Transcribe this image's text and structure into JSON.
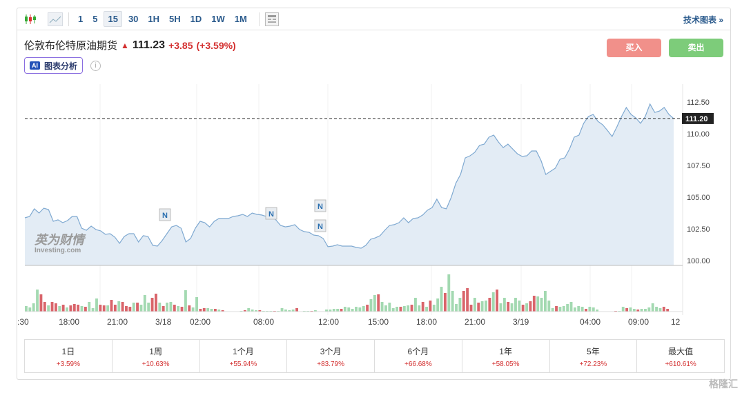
{
  "toolbar": {
    "intervals": [
      "1",
      "5",
      "15",
      "30",
      "1H",
      "5H",
      "1D",
      "1W",
      "1M"
    ],
    "active": "15",
    "tech_chart": "技术图表 »"
  },
  "instrument": {
    "name": "伦敦布伦特原油期货",
    "price": "111.23",
    "change": "+3.85",
    "change_pct": "(+3.59%)"
  },
  "ai": {
    "badge": "AI",
    "label": "图表分析",
    "info": "i"
  },
  "buttons": {
    "buy": "买入",
    "sell": "卖出"
  },
  "logo": {
    "cn": "英为财情",
    "en": "Investing.com"
  },
  "news_marker": "N",
  "colors": {
    "up": "#d32f2f",
    "buy": "#f1908a",
    "sell": "#7dcc7a",
    "line": "#7fa9d1",
    "fill": "#e3ecf5",
    "vol_up": "#a3d9b1",
    "vol_down": "#d9646a"
  },
  "chart_data": {
    "type": "area",
    "y_ticks": [
      "112.50",
      "110.00",
      "107.50",
      "105.00",
      "102.50",
      "100.00"
    ],
    "ylim": [
      99.9,
      113.6
    ],
    "current_label": "111.20",
    "current_value": 111.2,
    "x_ticks": [
      ":30",
      "18:00",
      "21:00",
      "3/18",
      "02:00",
      "08:00",
      "12:00",
      "15:00",
      "18:00",
      "21:00",
      "3/19",
      "04:00",
      "09:00",
      "12"
    ],
    "prices": [
      103.37,
      103.48,
      104.08,
      103.75,
      104.13,
      104.02,
      103.1,
      103.21,
      102.99,
      103.15,
      103.48,
      103.48,
      102.55,
      102.39,
      102.72,
      102.45,
      102.34,
      102.07,
      102.12,
      101.85,
      101.36,
      101.9,
      102.12,
      102.12,
      101.47,
      101.96,
      101.9,
      101.2,
      101.14,
      101.58,
      102.12,
      102.66,
      102.77,
      102.55,
      101.47,
      101.74,
      102.55,
      103.1,
      102.99,
      102.66,
      103.1,
      103.32,
      103.32,
      103.32,
      103.48,
      103.53,
      103.64,
      103.48,
      103.75,
      103.64,
      103.59,
      103.48,
      103.48,
      103.21,
      102.77,
      102.66,
      102.72,
      102.83,
      102.45,
      102.28,
      102.23,
      102.01,
      101.96,
      101.74,
      101.09,
      101.14,
      101.25,
      101.14,
      101.14,
      101.14,
      101.03,
      100.98,
      101.2,
      101.68,
      101.79,
      101.96,
      102.39,
      102.77,
      102.83,
      102.99,
      103.37,
      102.99,
      103.32,
      103.37,
      103.59,
      103.97,
      104.18,
      104.84,
      104.18,
      104.08,
      104.95,
      106.09,
      106.79,
      108.1,
      108.26,
      108.53,
      109.08,
      109.18,
      109.73,
      109.89,
      109.35,
      108.91,
      109.18,
      108.8,
      108.42,
      108.21,
      108.26,
      108.64,
      108.64,
      107.88,
      106.79,
      107.04,
      107.28,
      107.99,
      108.1,
      108.8,
      109.73,
      109.89,
      110.82,
      111.36,
      111.52,
      110.98,
      110.71,
      110.27,
      109.78,
      110.54,
      111.36,
      112.07,
      111.52,
      111.25,
      110.82,
      111.36,
      112.34,
      111.68,
      111.79,
      112.07,
      111.52,
      111.2
    ],
    "volumes": [
      8,
      6,
      12,
      32,
      25,
      14,
      9,
      14,
      12,
      8,
      10,
      6,
      9,
      11,
      10,
      8,
      7,
      14,
      5,
      19,
      10,
      9,
      9,
      17,
      10,
      15,
      14,
      8,
      7,
      13,
      13,
      10,
      24,
      13,
      20,
      26,
      13,
      8,
      13,
      14,
      10,
      8,
      7,
      31,
      9,
      6,
      21,
      4,
      5,
      5,
      4,
      4,
      3,
      2,
      0,
      0,
      0,
      0,
      1,
      2,
      5,
      3,
      2,
      2,
      1,
      1,
      1,
      1,
      1,
      5,
      3,
      2,
      3,
      5,
      0,
      1,
      1,
      1,
      2,
      0,
      0,
      3,
      3,
      4,
      4,
      4,
      7,
      6,
      4,
      7,
      6,
      8,
      10,
      18,
      24,
      25,
      14,
      9,
      13,
      5,
      7,
      7,
      8,
      9,
      10,
      20,
      9,
      14,
      7,
      16,
      10,
      19,
      36,
      27,
      54,
      30,
      11,
      20,
      30,
      34,
      10,
      20,
      13,
      15,
      16,
      20,
      28,
      32,
      12,
      20,
      14,
      12,
      20,
      16,
      10,
      12,
      15,
      23,
      22,
      20,
      30,
      16,
      5,
      8,
      7,
      8,
      11,
      14,
      6,
      8,
      7,
      4,
      7,
      6,
      3,
      0,
      0,
      0,
      0,
      1,
      1,
      7,
      5,
      6,
      4,
      3,
      4,
      4,
      6,
      12,
      7,
      5,
      7,
      4,
      0
    ],
    "vol_dirs": "ggggrrgrrgrgrrrgrgggrrgrrgrrrgrgggrrgrggrgrgrggrrggrgrrggrgrgggrgggrgggggrrggrgggggggrggggggrggrgggggrggrggrgrgggrggggrrrgrggrgrggrgggrgrrgggggrgggggggrggggrrgrggrggrggggggrrgg"
  },
  "periods": [
    {
      "label": "1日",
      "value": "+3.59%"
    },
    {
      "label": "1周",
      "value": "+10.63%"
    },
    {
      "label": "1个月",
      "value": "+55.94%"
    },
    {
      "label": "3个月",
      "value": "+83.79%"
    },
    {
      "label": "6个月",
      "value": "+66.68%"
    },
    {
      "label": "1年",
      "value": "+58.05%"
    },
    {
      "label": "5年",
      "value": "+72.23%"
    },
    {
      "label": "最大值",
      "value": "+610.61%"
    }
  ],
  "watermark": "格隆汇"
}
